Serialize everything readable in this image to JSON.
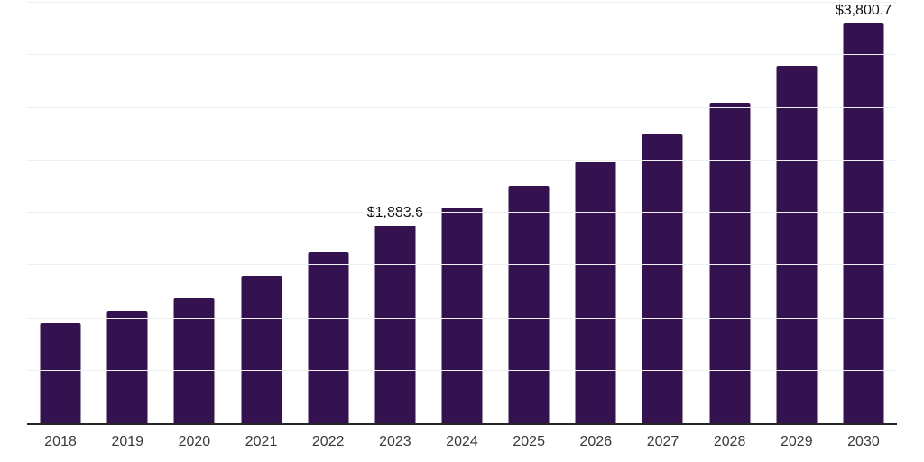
{
  "chart_data": {
    "type": "bar",
    "title": "",
    "xlabel": "",
    "ylabel": "",
    "categories": [
      "2018",
      "2019",
      "2020",
      "2021",
      "2022",
      "2023",
      "2024",
      "2025",
      "2026",
      "2027",
      "2028",
      "2029",
      "2030"
    ],
    "values": [
      950,
      1065,
      1195,
      1400,
      1630,
      1883.6,
      2050,
      2255,
      2490,
      2750,
      3050,
      3395,
      3800.7
    ],
    "data_labels": [
      {
        "category": "2023",
        "text": "$1,883.6"
      },
      {
        "category": "2030",
        "text": "$3,800.7"
      }
    ],
    "ylim": [
      0,
      4000
    ],
    "gridline_interval": 500,
    "grid": true,
    "legend": false,
    "y_tick_labels_shown": false,
    "colors": {
      "bar": "#33124f",
      "gridline": "#f0f0f0",
      "axis_line": "#262626",
      "tick_label": "#3a3a3a",
      "value_label": "#111111",
      "background": "#ffffff"
    }
  }
}
